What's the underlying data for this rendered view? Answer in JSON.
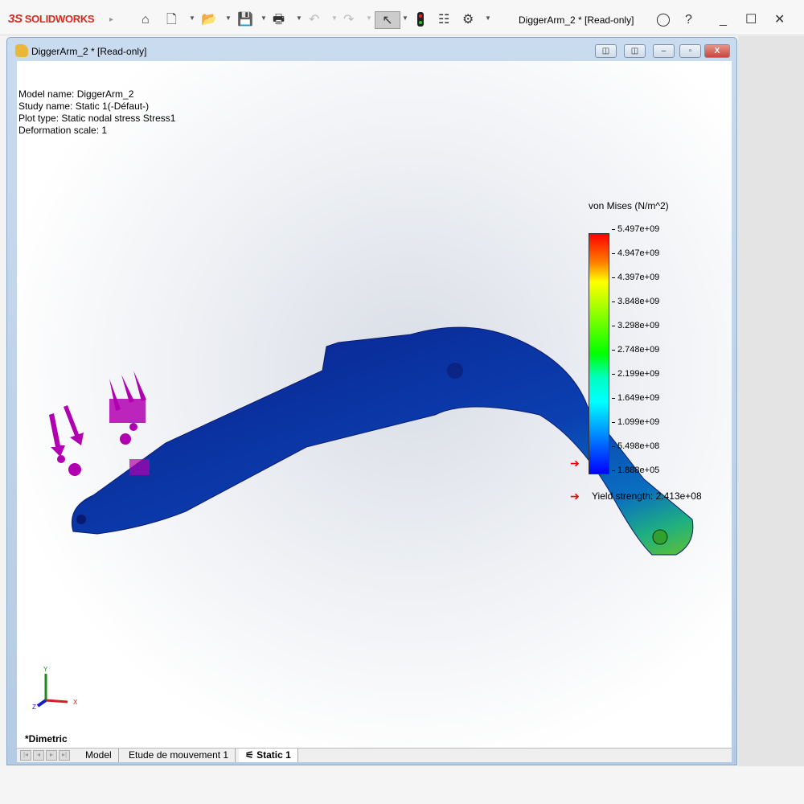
{
  "app": {
    "brand": "SOLIDWORKS",
    "brand_prefix": "3S",
    "title": "DiggerArm_2 * [Read-only]"
  },
  "toolbar": {
    "icons": [
      "home-icon",
      "new-document-icon",
      "open-icon",
      "save-icon",
      "print-icon",
      "undo-icon",
      "redo-icon",
      "select-icon",
      "rebuild-icon",
      "file-properties-icon",
      "options-icon"
    ]
  },
  "document": {
    "title": "DiggerArm_2 * [Read-only]"
  },
  "info": {
    "model": "Model name: DiggerArm_2",
    "study": "Study name: Static 1(-Défaut-)",
    "plot": "Plot type: Static nodal stress Stress1",
    "deformation": "Deformation scale: 1"
  },
  "legend": {
    "title": "von Mises (N/m^2)",
    "ticks": [
      "5.497e+09",
      "4.947e+09",
      "4.397e+09",
      "3.848e+09",
      "3.298e+09",
      "2.748e+09",
      "2.199e+09",
      "1.649e+09",
      "1.099e+09",
      "5.498e+08",
      "1.888e+05"
    ],
    "yield": "Yield strength: 2.413e+08"
  },
  "triad": {
    "x": "X",
    "y": "Y",
    "z": "Z"
  },
  "view": {
    "name": "*Dimetric"
  },
  "tabs": [
    {
      "label": "Model"
    },
    {
      "label": "Etude de mouvement 1"
    },
    {
      "label": "Static 1",
      "active": true
    }
  ],
  "colors": {
    "accent": "#d52b1e",
    "load_arrows": "#b000b0",
    "mesh_low": "#0a2fa0"
  }
}
